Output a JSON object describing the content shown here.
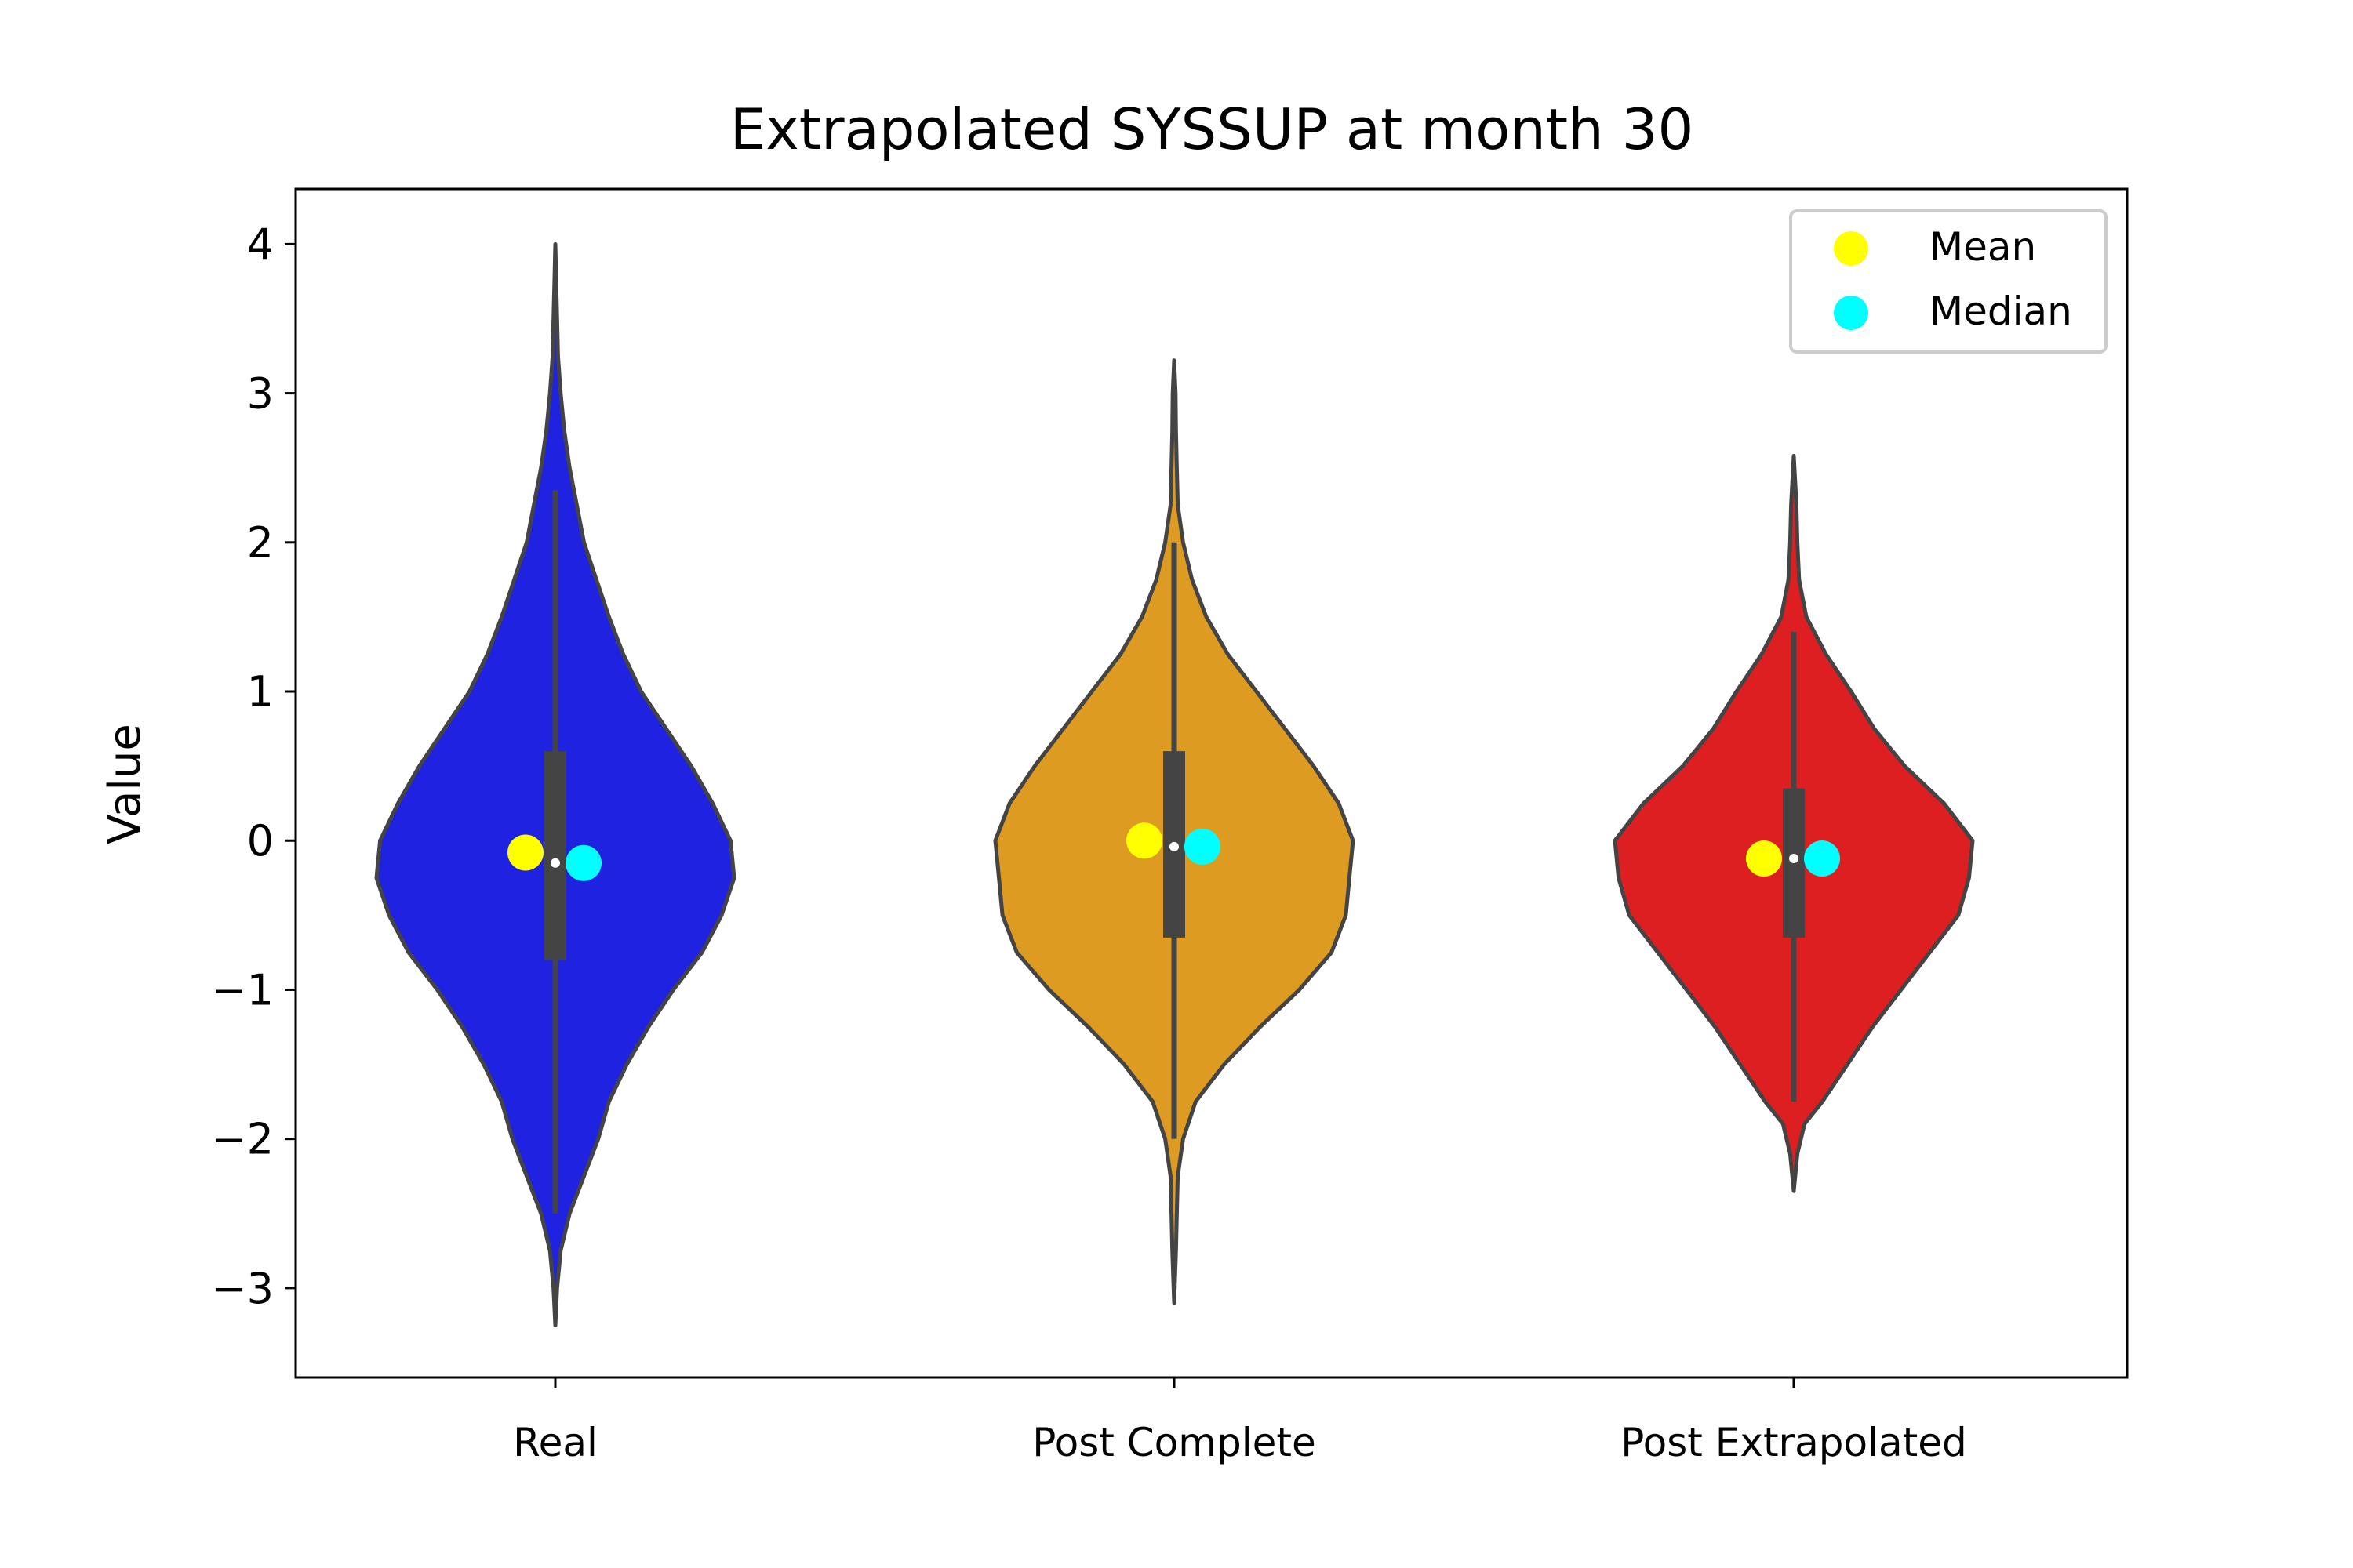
{
  "chart_data": {
    "type": "violin",
    "title": "Extrapolated SYSSUP at month 30",
    "xlabel": "",
    "ylabel": "Value",
    "ylim": [
      -3.6,
      4.37
    ],
    "yticks": [
      4,
      3,
      2,
      1,
      0,
      -1,
      -2,
      -3
    ],
    "ytick_labels": [
      "4",
      "3",
      "2",
      "1",
      "0",
      "−1",
      "−2",
      "−3"
    ],
    "categories": [
      "Real",
      "Post Complete",
      "Post Extrapolated"
    ],
    "grid": false,
    "legend_position": "top-right",
    "legend": [
      {
        "label": "Mean",
        "color": "#ffff00"
      },
      {
        "label": "Median",
        "color": "#00ffff"
      }
    ],
    "series": [
      {
        "category": "Real",
        "color": "#1f22e0",
        "min": -3.25,
        "max": 4.0,
        "q1": -0.8,
        "median": -0.15,
        "q3": 0.6,
        "whisker_low": -2.5,
        "whisker_high": 2.35,
        "mean": -0.08,
        "density": [
          [
            -3.25,
            0.0
          ],
          [
            -3.0,
            0.01
          ],
          [
            -2.75,
            0.03
          ],
          [
            -2.5,
            0.08
          ],
          [
            -2.25,
            0.16
          ],
          [
            -2.0,
            0.24
          ],
          [
            -1.75,
            0.3
          ],
          [
            -1.5,
            0.4
          ],
          [
            -1.25,
            0.52
          ],
          [
            -1.0,
            0.66
          ],
          [
            -0.75,
            0.82
          ],
          [
            -0.5,
            0.93
          ],
          [
            -0.25,
            1.0
          ],
          [
            0.0,
            0.98
          ],
          [
            0.25,
            0.88
          ],
          [
            0.5,
            0.76
          ],
          [
            0.75,
            0.62
          ],
          [
            1.0,
            0.48
          ],
          [
            1.25,
            0.38
          ],
          [
            1.5,
            0.3
          ],
          [
            1.75,
            0.23
          ],
          [
            2.0,
            0.16
          ],
          [
            2.25,
            0.12
          ],
          [
            2.5,
            0.08
          ],
          [
            2.75,
            0.05
          ],
          [
            3.0,
            0.03
          ],
          [
            3.25,
            0.015
          ],
          [
            3.5,
            0.01
          ],
          [
            3.75,
            0.005
          ],
          [
            4.0,
            0.0
          ]
        ]
      },
      {
        "category": "Post Complete",
        "color": "#de9b21",
        "min": -3.1,
        "max": 3.22,
        "q1": -0.65,
        "median": -0.04,
        "q3": 0.6,
        "whisker_low": -2.0,
        "whisker_high": 2.0,
        "mean": 0.0,
        "density": [
          [
            -3.1,
            0.0
          ],
          [
            -2.75,
            0.01
          ],
          [
            -2.5,
            0.015
          ],
          [
            -2.25,
            0.02
          ],
          [
            -2.0,
            0.05
          ],
          [
            -1.75,
            0.12
          ],
          [
            -1.5,
            0.28
          ],
          [
            -1.25,
            0.48
          ],
          [
            -1.0,
            0.7
          ],
          [
            -0.75,
            0.88
          ],
          [
            -0.5,
            0.96
          ],
          [
            -0.25,
            0.98
          ],
          [
            0.0,
            1.0
          ],
          [
            0.25,
            0.92
          ],
          [
            0.5,
            0.78
          ],
          [
            0.75,
            0.62
          ],
          [
            1.0,
            0.46
          ],
          [
            1.25,
            0.3
          ],
          [
            1.5,
            0.18
          ],
          [
            1.75,
            0.1
          ],
          [
            2.0,
            0.05
          ],
          [
            2.25,
            0.02
          ],
          [
            2.5,
            0.015
          ],
          [
            2.75,
            0.01
          ],
          [
            3.0,
            0.008
          ],
          [
            3.22,
            0.0
          ]
        ]
      },
      {
        "category": "Post Extrapolated",
        "color": "#de1f21",
        "min": -2.35,
        "max": 2.58,
        "q1": -0.65,
        "median": -0.12,
        "q3": 0.35,
        "whisker_low": -1.75,
        "whisker_high": 1.4,
        "mean": -0.12,
        "density": [
          [
            -2.35,
            0.0
          ],
          [
            -2.1,
            0.02
          ],
          [
            -1.9,
            0.06
          ],
          [
            -1.75,
            0.16
          ],
          [
            -1.5,
            0.3
          ],
          [
            -1.25,
            0.44
          ],
          [
            -1.0,
            0.6
          ],
          [
            -0.75,
            0.76
          ],
          [
            -0.5,
            0.92
          ],
          [
            -0.25,
            0.98
          ],
          [
            0.0,
            1.0
          ],
          [
            0.25,
            0.84
          ],
          [
            0.5,
            0.62
          ],
          [
            0.75,
            0.45
          ],
          [
            1.0,
            0.32
          ],
          [
            1.25,
            0.18
          ],
          [
            1.5,
            0.07
          ],
          [
            1.75,
            0.03
          ],
          [
            2.0,
            0.02
          ],
          [
            2.25,
            0.015
          ],
          [
            2.58,
            0.0
          ]
        ]
      }
    ]
  }
}
